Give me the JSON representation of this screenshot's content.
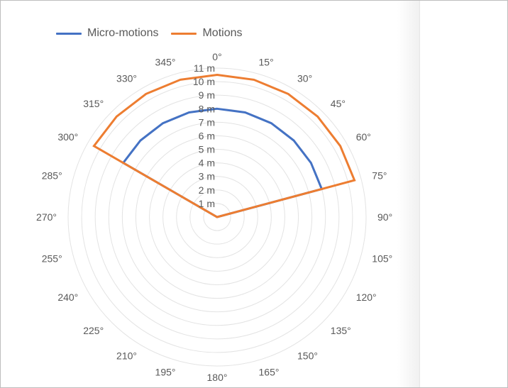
{
  "chart_data": {
    "type": "radar",
    "title": "",
    "legend_position": "top",
    "angle_labels": [
      "0°",
      "15°",
      "30°",
      "45°",
      "60°",
      "75°",
      "90°",
      "105°",
      "120°",
      "135°",
      "150°",
      "165°",
      "180°",
      "195°",
      "210°",
      "225°",
      "240°",
      "255°",
      "270°",
      "285°",
      "300°",
      "315°",
      "330°",
      "345°"
    ],
    "radial_labels": [
      "1 m",
      "2 m",
      "3 m",
      "4 m",
      "5 m",
      "6 m",
      "7 m",
      "8 m",
      "9 m",
      "10 m",
      "11 m"
    ],
    "radial_range": [
      0,
      11
    ],
    "radial_unit": "m",
    "series": [
      {
        "name": "Micro-motions",
        "color": "#4472c4",
        "values": [
          8,
          8,
          8,
          8,
          8,
          8,
          0,
          0,
          0,
          0,
          0,
          0,
          0,
          0,
          0,
          0,
          0,
          0,
          0,
          0,
          8,
          8,
          8,
          8
        ]
      },
      {
        "name": "Motions",
        "color": "#ed7d31",
        "values": [
          10.5,
          10.5,
          10.5,
          10.5,
          10.5,
          10.5,
          0,
          0,
          0,
          0,
          0,
          0,
          0,
          0,
          0,
          0,
          0,
          0,
          0,
          0,
          10.5,
          10.5,
          10.5,
          10.5
        ]
      }
    ],
    "grid": true
  }
}
